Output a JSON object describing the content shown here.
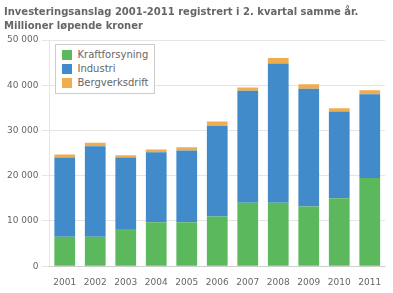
{
  "chart_data": {
    "type": "bar",
    "title": "Investeringsanslag 2001-2011 registrert i 2. kvartal samme år.",
    "subtitle": "Millioner løpende kroner",
    "categories": [
      "2001",
      "2002",
      "2003",
      "2004",
      "2005",
      "2006",
      "2007",
      "2008",
      "2009",
      "2010",
      "2011"
    ],
    "series": [
      {
        "name": "Kraftforsyning",
        "color": "#5cb85c",
        "values": [
          6500,
          6500,
          8200,
          9700,
          9700,
          11000,
          14000,
          14000,
          13200,
          15000,
          19500
        ]
      },
      {
        "name": "Industri",
        "color": "#428bca",
        "values": [
          17500,
          20000,
          15800,
          15500,
          15900,
          20000,
          24800,
          30800,
          26000,
          19200,
          18500
        ]
      },
      {
        "name": "Bergverksdrift",
        "color": "#f0ad4e",
        "values": [
          700,
          800,
          500,
          600,
          700,
          1000,
          700,
          1200,
          1000,
          700,
          900
        ]
      }
    ],
    "stacked": true,
    "ylim": [
      0,
      50000
    ],
    "yticks": [
      0,
      {
        "value": 10000,
        "label": "10 000"
      },
      {
        "value": 20000,
        "label": "20 000"
      },
      {
        "value": 30000,
        "label": "30 000"
      },
      {
        "value": 40000,
        "label": "40 000"
      },
      {
        "value": 50000,
        "label": "50 000"
      }
    ],
    "grid": true,
    "legend": "upper left"
  }
}
